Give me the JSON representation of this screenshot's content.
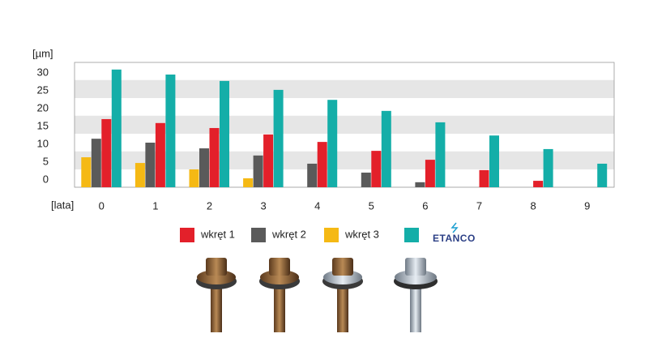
{
  "chart_data": {
    "type": "bar",
    "y_label": "[µm]",
    "x_label": "[lata]",
    "categories": [
      "0",
      "1",
      "2",
      "3",
      "4",
      "5",
      "6",
      "7",
      "8",
      "9"
    ],
    "series": [
      {
        "name": "wkręt 3",
        "color": "#f5b914",
        "values": [
          8.4,
          6.8,
          5,
          2.5,
          0,
          0,
          0,
          0,
          0,
          0
        ]
      },
      {
        "name": "wkręt 2",
        "color": "#5a5a5a",
        "values": [
          13.6,
          12.5,
          10.9,
          8.9,
          6.6,
          4.1,
          1.4,
          0,
          0,
          0
        ]
      },
      {
        "name": "wkręt 1",
        "color": "#e3202a",
        "values": [
          19.1,
          18,
          16.6,
          14.8,
          12.7,
          10.2,
          7.7,
          4.8,
          1.8,
          0
        ]
      },
      {
        "name": "ETANCO",
        "color": "#14aea8",
        "values": [
          33,
          31.6,
          29.8,
          27.3,
          24.5,
          21.4,
          18.2,
          14.5,
          10.7,
          6.6
        ]
      }
    ],
    "ylim": [
      0,
      35
    ],
    "yticks": [
      0,
      5,
      10,
      15,
      20,
      25,
      30
    ],
    "grid": true
  }
}
